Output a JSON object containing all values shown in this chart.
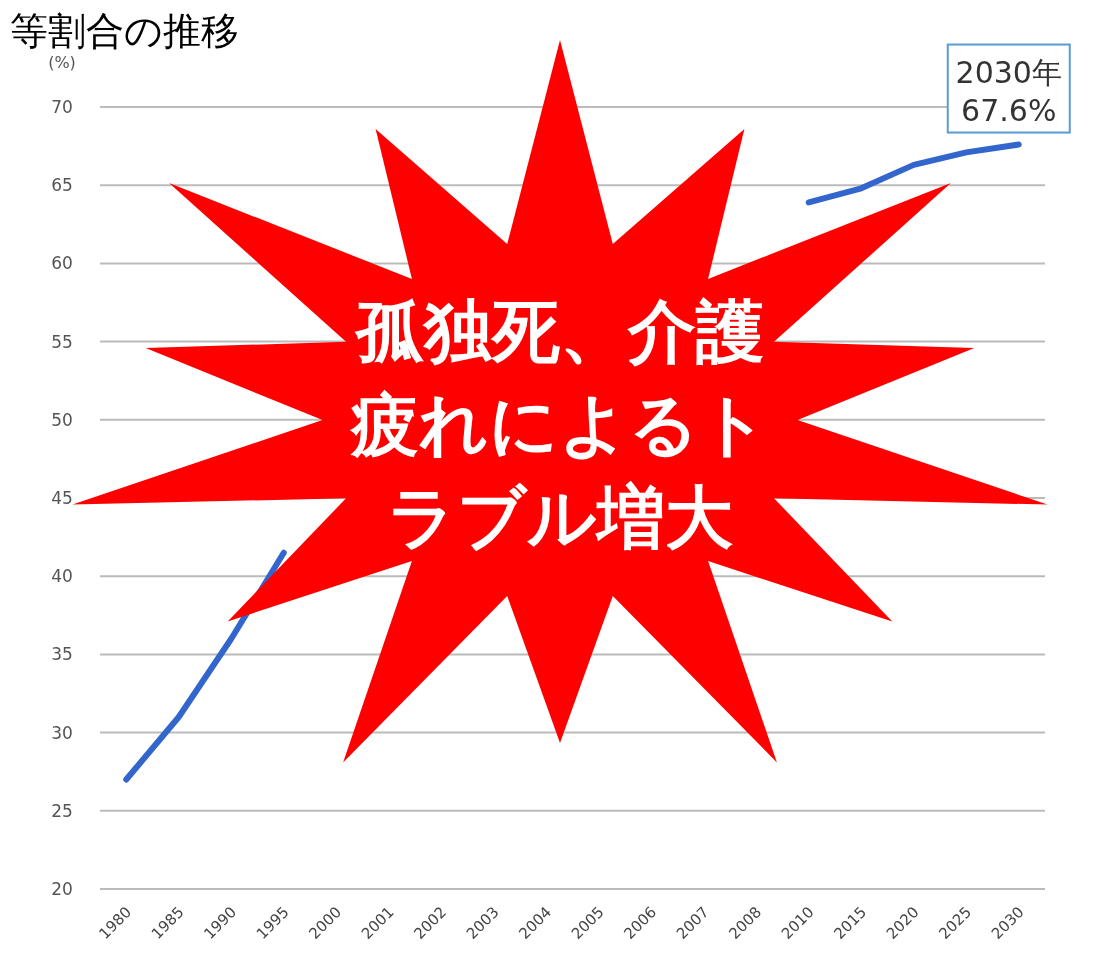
{
  "chart_data": {
    "type": "line",
    "title": "等割合の推移",
    "ylabel": "(%)",
    "categories": [
      "1980",
      "1985",
      "1990",
      "1995",
      "2000",
      "2001",
      "2002",
      "2003",
      "2004",
      "2005",
      "2006",
      "2007",
      "2008",
      "2010",
      "2015",
      "2020",
      "2025",
      "2030"
    ],
    "series": [
      {
        "color": "#3366cc",
        "values": [
          27,
          31,
          36,
          41.5,
          null,
          null,
          null,
          null,
          null,
          null,
          null,
          null,
          null,
          63.9,
          64.8,
          66.3,
          67.1,
          67.6
        ]
      }
    ],
    "ylim": [
      20,
      70
    ],
    "yticks": [
      20,
      25,
      30,
      35,
      40,
      45,
      50,
      55,
      60,
      65,
      70
    ],
    "grid": "y",
    "annotations": [
      {
        "text": "2030年\n67.6%",
        "x": "2030",
        "y": 67.6
      },
      "孤独死、介護疲れによるトラブル増大"
    ]
  }
}
